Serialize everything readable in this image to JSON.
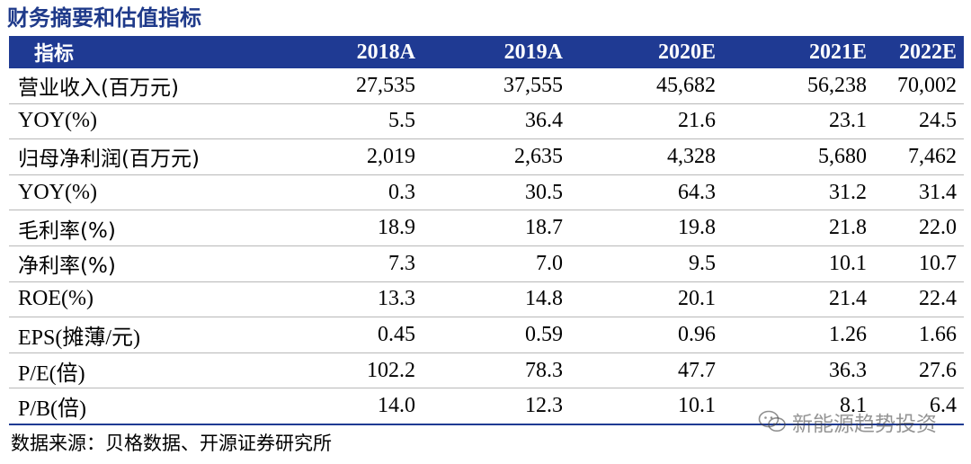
{
  "title": "财务摘要和估值指标",
  "table": {
    "header_label": "指标",
    "years": [
      "2018A",
      "2019A",
      "2020E",
      "2021E",
      "2022E"
    ],
    "rows": [
      {
        "label": "营业收入(百万元)",
        "values": [
          "27,535",
          "37,555",
          "45,682",
          "56,238",
          "70,002"
        ]
      },
      {
        "label": "YOY(%)",
        "values": [
          "5.5",
          "36.4",
          "21.6",
          "23.1",
          "24.5"
        ]
      },
      {
        "label": "归母净利润(百万元)",
        "values": [
          "2,019",
          "2,635",
          "4,328",
          "5,680",
          "7,462"
        ]
      },
      {
        "label": "YOY(%)",
        "values": [
          "0.3",
          "30.5",
          "64.3",
          "31.2",
          "31.4"
        ]
      },
      {
        "label": "毛利率(%)",
        "values": [
          "18.9",
          "18.7",
          "19.8",
          "21.8",
          "22.0"
        ]
      },
      {
        "label": "净利率(%)",
        "values": [
          "7.3",
          "7.0",
          "9.5",
          "10.1",
          "10.7"
        ]
      },
      {
        "label": "ROE(%)",
        "values": [
          "13.3",
          "14.8",
          "20.1",
          "21.4",
          "22.4"
        ]
      },
      {
        "label": "EPS(摊薄/元)",
        "values": [
          "0.45",
          "0.59",
          "0.96",
          "1.26",
          "1.66"
        ]
      },
      {
        "label": "P/E(倍)",
        "values": [
          "102.2",
          "78.3",
          "47.7",
          "36.3",
          "27.6"
        ]
      },
      {
        "label": "P/B(倍)",
        "values": [
          "14.0",
          "12.3",
          "10.1",
          "8.1",
          "6.4"
        ]
      }
    ]
  },
  "source": "数据来源：贝格数据、开源证券研究所",
  "watermark": {
    "text": "新能源趋势投资",
    "icon": "wechat-icon"
  },
  "colors": {
    "header_bg": "#1f3a93",
    "title": "#1f3a8a"
  }
}
